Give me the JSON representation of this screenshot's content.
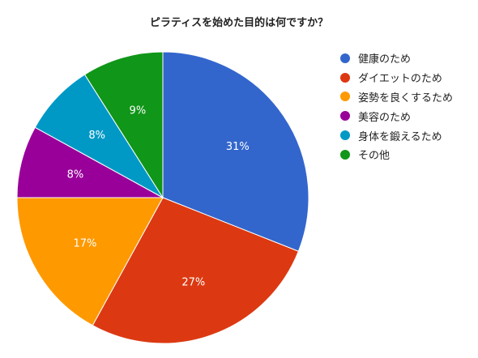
{
  "chart_data": {
    "type": "pie",
    "title": "ピラティスを始めた目的は何ですか？",
    "start_angle_deg": 0,
    "direction": "clockwise",
    "legend_position": "right",
    "slices": [
      {
        "label": "健康のため",
        "value": 31,
        "display": "31%",
        "color": "#3366cc"
      },
      {
        "label": "ダイエットのため",
        "value": 27,
        "display": "27%",
        "color": "#dc3912"
      },
      {
        "label": "姿勢を良くするため",
        "value": 17,
        "display": "17%",
        "color": "#ff9900"
      },
      {
        "label": "美容のため",
        "value": 8,
        "display": "8%",
        "color": "#990099"
      },
      {
        "label": "身体を鍛えるため",
        "value": 8,
        "display": "8%",
        "color": "#0099c6"
      },
      {
        "label": "その他",
        "value": 9,
        "display": "9%",
        "color": "#109618"
      }
    ]
  }
}
